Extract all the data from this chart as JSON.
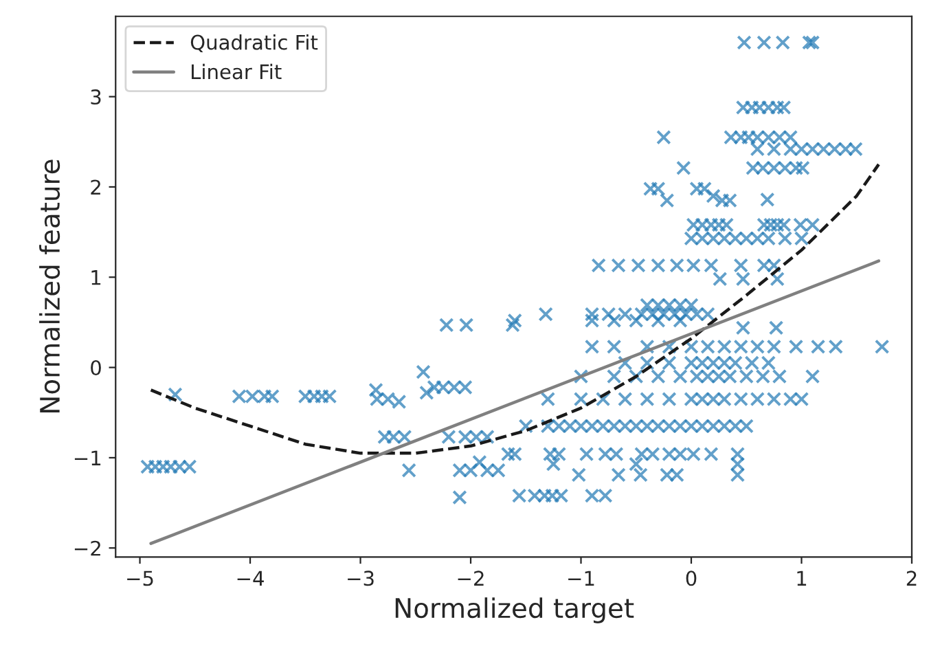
{
  "chart_data": {
    "type": "scatter",
    "xlabel": "Normalized target",
    "ylabel": "Normalized feature",
    "xlim": [
      -5.22,
      2.0
    ],
    "ylim": [
      -2.1,
      3.89
    ],
    "xticks": [
      -5,
      -4,
      -3,
      -2,
      -1,
      0,
      1,
      2
    ],
    "yticks": [
      -2,
      -1,
      0,
      1,
      2,
      3
    ],
    "grid": false,
    "legend": "top left",
    "series": [
      {
        "marker": "cross",
        "color": "#1f77b4",
        "x": [
          -4.93,
          -4.86,
          -4.79,
          -4.72,
          -4.64,
          -4.55,
          -4.68,
          -4.1,
          -3.98,
          -3.87,
          -3.8,
          -3.5,
          -3.42,
          -3.35,
          -3.28,
          -2.86,
          -2.85,
          -2.75,
          -2.65,
          -2.43,
          -2.4,
          -2.33,
          -2.25,
          -2.15,
          -2.05,
          -2.78,
          -2.7,
          -2.6,
          -2.56,
          -2.2,
          -2.05,
          -1.95,
          -1.85,
          -2.1,
          -2.1,
          -2.0,
          -1.92,
          -1.85,
          -1.75,
          -2.22,
          -2.04,
          -1.62,
          -1.6,
          -1.32,
          -1.66,
          -1.6,
          -1.28,
          -1.2,
          -0.95,
          -0.78,
          -0.68,
          -0.45,
          -0.35,
          -0.2,
          -0.1,
          0.02,
          0.18,
          0.42,
          -1.25,
          -0.5,
          0.42,
          -1.02,
          -0.66,
          -0.46,
          -0.22,
          -0.13,
          0.42,
          -1.56,
          -1.42,
          -1.33,
          -1.26,
          -1.18,
          -0.9,
          -0.78,
          -1.5,
          -1.3,
          -1.2,
          -1.1,
          -1.0,
          -0.9,
          -0.8,
          -0.7,
          -0.6,
          -0.5,
          -0.4,
          -0.3,
          -0.2,
          -0.1,
          0.0,
          0.1,
          0.2,
          0.3,
          0.4,
          0.5,
          -1.3,
          -1.0,
          -0.8,
          -0.6,
          -0.4,
          -0.2,
          0.0,
          0.1,
          0.2,
          0.3,
          0.45,
          0.6,
          0.75,
          0.9,
          1.0,
          -1.0,
          -0.7,
          -0.5,
          -0.3,
          -0.1,
          0.05,
          0.15,
          0.25,
          0.35,
          0.5,
          0.65,
          0.8,
          1.1,
          -0.6,
          -0.4,
          -0.2,
          0.0,
          0.1,
          0.2,
          0.3,
          0.4,
          0.55,
          0.7,
          -0.9,
          -0.7,
          -0.4,
          -0.2,
          0.0,
          0.15,
          0.3,
          0.45,
          0.6,
          0.75,
          0.95,
          1.15,
          1.31,
          1.73,
          0.47,
          0.77,
          -0.9,
          -0.7,
          -0.5,
          -0.3,
          -0.1,
          -0.9,
          -0.75,
          -0.6,
          -0.45,
          -0.35,
          -0.25,
          -0.15,
          -0.05,
          0.05,
          0.15,
          -0.4,
          -0.3,
          -0.2,
          -0.1,
          0.0,
          0.26,
          0.47,
          0.78,
          -0.84,
          -0.66,
          -0.48,
          -0.3,
          -0.13,
          0.02,
          0.18,
          0.45,
          0.66,
          0.75,
          0.0,
          0.1,
          0.2,
          0.3,
          0.4,
          0.5,
          0.6,
          0.7,
          0.85,
          1.0,
          0.02,
          0.1,
          0.18,
          0.25,
          0.32,
          0.66,
          0.72,
          0.78,
          0.84,
          0.99,
          1.1,
          -0.37,
          -0.3,
          -0.22,
          0.05,
          0.12,
          0.2,
          0.28,
          0.35,
          0.69,
          -0.07,
          0.56,
          0.65,
          0.75,
          0.85,
          0.95,
          1.01,
          0.6,
          0.75,
          0.9,
          1.0,
          1.1,
          1.2,
          1.3,
          1.4,
          1.49,
          -0.25,
          0.36,
          0.45,
          0.52,
          0.6,
          0.7,
          0.8,
          0.9,
          0.47,
          0.55,
          0.62,
          0.7,
          0.78,
          0.84,
          0.48,
          0.66,
          0.83,
          1.07,
          1.1
        ],
        "values": [
          -1.1,
          -1.1,
          -1.1,
          -1.1,
          -1.1,
          -1.1,
          -0.3,
          -0.32,
          -0.32,
          -0.32,
          -0.32,
          -0.32,
          -0.32,
          -0.32,
          -0.32,
          -0.25,
          -0.35,
          -0.35,
          -0.38,
          -0.05,
          -0.28,
          -0.22,
          -0.22,
          -0.22,
          -0.22,
          -0.77,
          -0.77,
          -0.77,
          -1.14,
          -0.77,
          -0.77,
          -0.77,
          -0.77,
          -1.44,
          -1.14,
          -1.14,
          -1.05,
          -1.14,
          -1.14,
          0.47,
          0.47,
          0.47,
          0.52,
          0.59,
          -0.96,
          -0.96,
          -0.96,
          -0.96,
          -0.96,
          -0.96,
          -0.96,
          -0.96,
          -0.96,
          -0.96,
          -0.96,
          -0.96,
          -0.96,
          -0.96,
          -1.07,
          -1.07,
          -1.07,
          -1.19,
          -1.19,
          -1.19,
          -1.19,
          -1.19,
          -1.19,
          -1.42,
          -1.42,
          -1.42,
          -1.42,
          -1.42,
          -1.42,
          -1.42,
          -0.65,
          -0.65,
          -0.65,
          -0.65,
          -0.65,
          -0.65,
          -0.65,
          -0.65,
          -0.65,
          -0.65,
          -0.65,
          -0.65,
          -0.65,
          -0.65,
          -0.65,
          -0.65,
          -0.65,
          -0.65,
          -0.65,
          -0.65,
          -0.35,
          -0.35,
          -0.35,
          -0.35,
          -0.35,
          -0.35,
          -0.35,
          -0.35,
          -0.35,
          -0.35,
          -0.35,
          -0.35,
          -0.35,
          -0.35,
          -0.35,
          -0.1,
          -0.1,
          -0.1,
          -0.1,
          -0.1,
          -0.1,
          -0.1,
          -0.1,
          -0.1,
          -0.1,
          -0.1,
          -0.1,
          -0.1,
          0.05,
          0.05,
          0.05,
          0.05,
          0.05,
          0.05,
          0.05,
          0.05,
          0.05,
          0.05,
          0.23,
          0.23,
          0.23,
          0.23,
          0.23,
          0.23,
          0.23,
          0.23,
          0.23,
          0.23,
          0.23,
          0.23,
          0.23,
          0.23,
          0.44,
          0.44,
          0.52,
          0.52,
          0.52,
          0.52,
          0.52,
          0.59,
          0.59,
          0.59,
          0.59,
          0.59,
          0.59,
          0.59,
          0.59,
          0.59,
          0.59,
          0.69,
          0.69,
          0.69,
          0.69,
          0.69,
          0.98,
          0.98,
          0.98,
          1.13,
          1.13,
          1.13,
          1.13,
          1.13,
          1.13,
          1.13,
          1.13,
          1.13,
          1.13,
          1.43,
          1.43,
          1.43,
          1.43,
          1.43,
          1.43,
          1.43,
          1.43,
          1.43,
          1.43,
          1.58,
          1.58,
          1.58,
          1.58,
          1.58,
          1.58,
          1.58,
          1.58,
          1.58,
          1.58,
          1.58,
          1.98,
          1.98,
          1.85,
          1.98,
          1.98,
          1.9,
          1.85,
          1.85,
          1.86,
          2.21,
          2.21,
          2.21,
          2.21,
          2.21,
          2.21,
          2.21,
          2.42,
          2.42,
          2.42,
          2.42,
          2.42,
          2.42,
          2.42,
          2.42,
          2.42,
          2.55,
          2.55,
          2.55,
          2.55,
          2.55,
          2.55,
          2.55,
          2.55,
          2.88,
          2.88,
          2.88,
          2.88,
          2.88,
          2.88,
          3.6,
          3.6,
          3.6,
          3.6,
          3.6
        ]
      },
      {
        "type": "line",
        "name": "Quadratic Fit",
        "color": "#1a1a1a",
        "line_style": "dashed",
        "marker": "none",
        "x": [
          -4.9,
          -4.5,
          -4,
          -3.5,
          -3,
          -2.5,
          -2,
          -1.5,
          -1,
          -0.5,
          0,
          0.5,
          1,
          1.5,
          1.7
        ],
        "values": [
          -0.25,
          -0.45,
          -0.65,
          -0.85,
          -0.95,
          -0.95,
          -0.87,
          -0.7,
          -0.45,
          -0.1,
          0.32,
          0.8,
          1.3,
          1.9,
          2.25
        ]
      },
      {
        "type": "line",
        "name": "Linear Fit",
        "color": "#808080",
        "line_style": "solid",
        "marker": "none",
        "x": [
          -4.9,
          1.7
        ],
        "values": [
          -1.95,
          1.18
        ]
      }
    ]
  }
}
